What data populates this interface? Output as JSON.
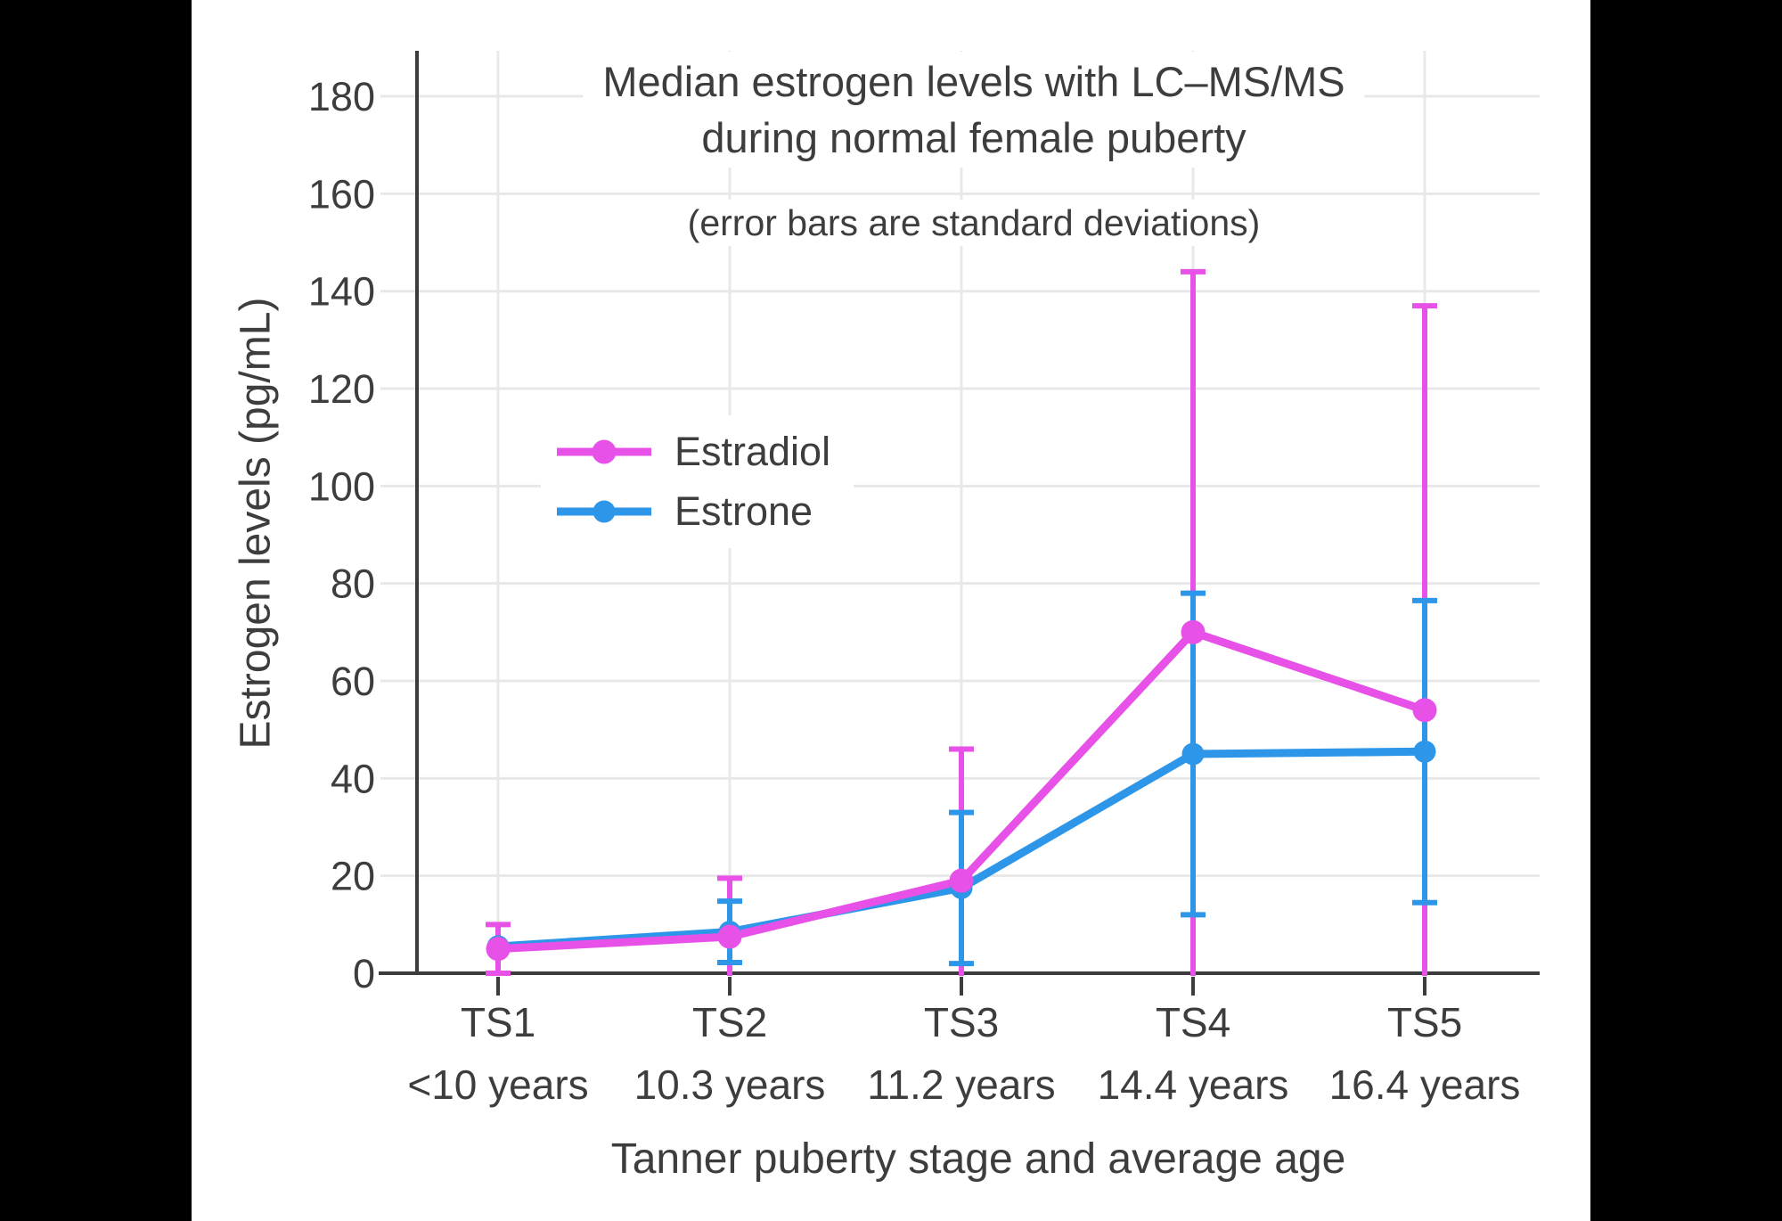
{
  "frame": {
    "background_color": "#000000",
    "panel_color": "#ffffff",
    "text_color": "#3d3d3d",
    "axis_color": "#3c3c3c",
    "gridline_color": "#e8e8e8"
  },
  "chart_data": {
    "type": "line",
    "title_line1": "Median estrogen levels with LC–MS/MS",
    "title_line2": "during normal female puberty",
    "subtitle": "(error bars are standard deviations)",
    "xlabel": "Tanner puberty stage and average age",
    "ylabel": "Estrogen levels (pg/mL)",
    "categories": [
      "TS1",
      "TS2",
      "TS3",
      "TS4",
      "TS5"
    ],
    "category_ages": [
      "<10 years",
      "10.3 years",
      "11.2 years",
      "14.4 years",
      "16.4 years"
    ],
    "y_ticks": [
      0,
      20,
      40,
      60,
      80,
      100,
      120,
      140,
      160,
      180
    ],
    "ylim": [
      0,
      190
    ],
    "grid": true,
    "legend_position": "inside-upper-left",
    "series": [
      {
        "name": "Estradiol",
        "color": "#e751e7",
        "values": [
          5,
          7.5,
          19,
          70,
          54
        ],
        "sd": [
          5,
          12,
          27,
          74,
          83
        ]
      },
      {
        "name": "Estrone",
        "color": "#2e96e9",
        "values": [
          5.5,
          8.5,
          17.5,
          45,
          45.5
        ],
        "sd": [
          null,
          6.3,
          15.5,
          33,
          31
        ]
      }
    ]
  }
}
